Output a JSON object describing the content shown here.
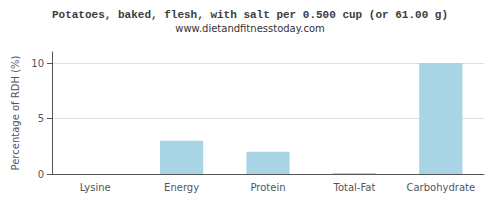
{
  "chart_data": {
    "type": "bar",
    "title": "Potatoes, baked, flesh, with salt per 0.500 cup (or 61.00 g)",
    "subtitle": "www.dietandfitnesstoday.com",
    "categories": [
      "Lysine",
      "Energy",
      "Protein",
      "Total-Fat",
      "Carbohydrate"
    ],
    "values": [
      0.0,
      3.0,
      2.0,
      0.1,
      10.0
    ],
    "color": "#a8d4e6",
    "ylabel": "Percentage of RDH (%)",
    "ylim": [
      0,
      11
    ],
    "yticks": [
      0,
      5,
      10
    ],
    "grid": true
  }
}
